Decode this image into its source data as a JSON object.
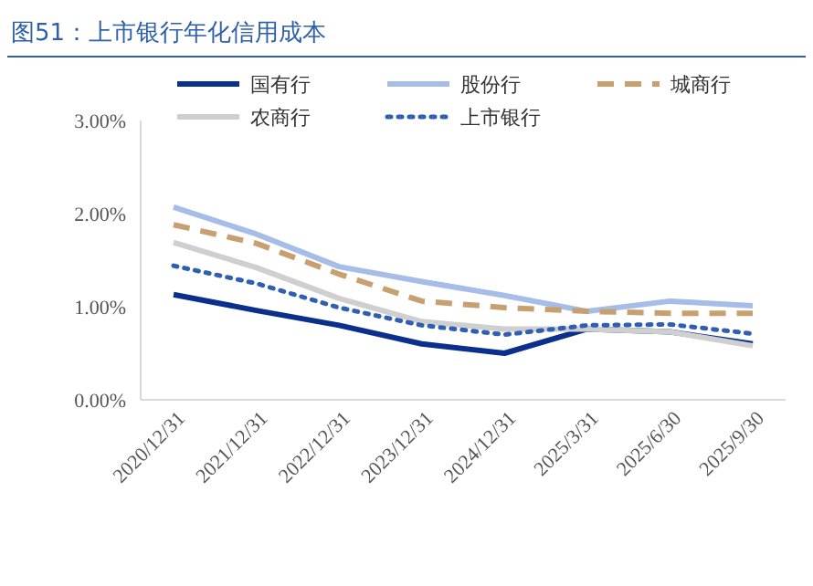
{
  "chart_data": {
    "type": "line",
    "title": "图51：上市银行年化信用成本",
    "categories": [
      "2020/12/31",
      "2021/12/31",
      "2022/12/31",
      "2023/12/31",
      "2024/12/31",
      "2025/3/31",
      "2025/6/30",
      "2025/9/30"
    ],
    "series": [
      {
        "name": "国有行",
        "color": "#0a2f8c",
        "line_style": "solid",
        "values": [
          1.13,
          0.96,
          0.8,
          0.6,
          0.5,
          0.76,
          0.73,
          0.6
        ]
      },
      {
        "name": "股份行",
        "color": "#a6bde8",
        "line_style": "solid",
        "values": [
          2.07,
          1.78,
          1.43,
          1.27,
          1.12,
          0.95,
          1.06,
          1.01
        ]
      },
      {
        "name": "城商行",
        "color": "#c8a070",
        "line_style": "dashed",
        "values": [
          1.88,
          1.68,
          1.35,
          1.06,
          0.99,
          0.95,
          0.93,
          0.93
        ]
      },
      {
        "name": "农商行",
        "color": "#cfcfcf",
        "line_style": "solid",
        "values": [
          1.69,
          1.42,
          1.09,
          0.84,
          0.76,
          0.76,
          0.73,
          0.58
        ]
      },
      {
        "name": "上市银行",
        "color": "#2f5fb3",
        "line_style": "dotted",
        "values": [
          1.44,
          1.25,
          0.99,
          0.8,
          0.7,
          0.8,
          0.81,
          0.71
        ]
      }
    ],
    "ylim": [
      0,
      3
    ],
    "yticks": [
      {
        "value": 0,
        "label": "0.00%"
      },
      {
        "value": 1,
        "label": "1.00%"
      },
      {
        "value": 2,
        "label": "2.00%"
      },
      {
        "value": 3,
        "label": "3.00%"
      }
    ],
    "grid": false,
    "legend": "top",
    "marker": "none"
  }
}
